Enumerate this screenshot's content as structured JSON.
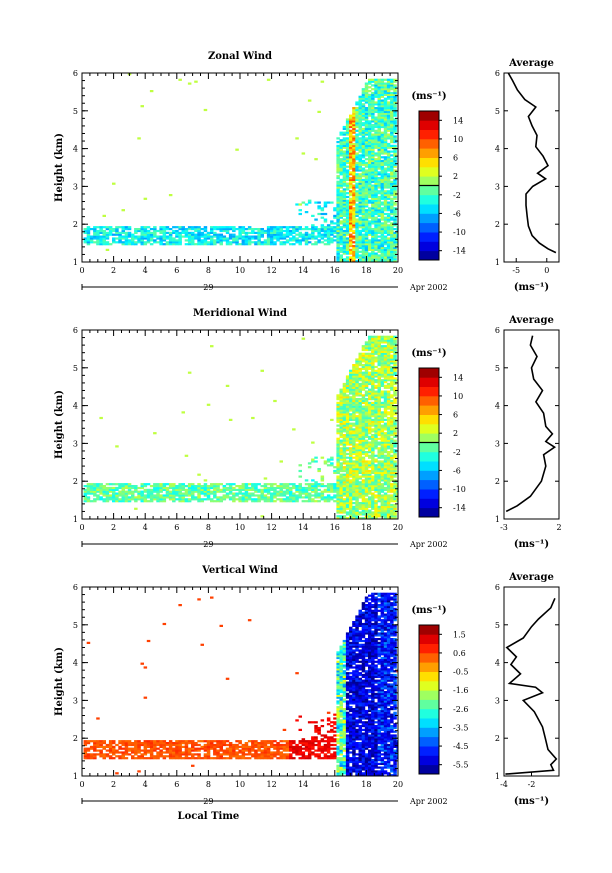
{
  "chart_data": [
    {
      "type": "heatmap",
      "title": "Zonal Wind",
      "ylabel": "Height (km)",
      "xlim": [
        0,
        20
      ],
      "ylim": [
        1,
        6
      ],
      "xticks": [
        "0",
        "2",
        "4",
        "6",
        "8",
        "10",
        "12",
        "14",
        "16",
        "18",
        "20"
      ],
      "yticks": [
        "1",
        "2",
        "3",
        "4",
        "5",
        "6"
      ],
      "date_day": "29",
      "date_month": "Apr 2002",
      "colorbar": {
        "unit": "(ms⁻¹)",
        "ticks": [
          "14",
          "10",
          "6",
          "2",
          "-2",
          "-6",
          "-10",
          "-14"
        ],
        "range": [
          -16,
          16
        ],
        "zero_line": 0
      },
      "average_profile": {
        "title": "Average",
        "xlabel": "(ms⁻¹)",
        "xlim": [
          -7,
          2
        ],
        "xticks": [
          "-5",
          "0"
        ],
        "xtick_values": [
          -5,
          0
        ],
        "points": [
          [
            1.5,
            1.25
          ],
          [
            0.2,
            1.35
          ],
          [
            -1.2,
            1.5
          ],
          [
            -2.4,
            1.7
          ],
          [
            -3,
            1.95
          ],
          [
            -3.2,
            2.2
          ],
          [
            -3.4,
            2.5
          ],
          [
            -3.4,
            2.8
          ],
          [
            -2.3,
            3.0
          ],
          [
            -0.2,
            3.2
          ],
          [
            -1.5,
            3.35
          ],
          [
            0.2,
            3.55
          ],
          [
            -0.6,
            3.8
          ],
          [
            -1.8,
            4.05
          ],
          [
            -1.6,
            4.35
          ],
          [
            -2.4,
            4.6
          ],
          [
            -3,
            4.85
          ],
          [
            -1.8,
            5.1
          ],
          [
            -3.6,
            5.3
          ],
          [
            -4.8,
            5.55
          ],
          [
            -5.6,
            5.8
          ],
          [
            -6.3,
            6.0
          ]
        ]
      },
      "data_coverage": "Echoes mostly between 1.5-2 km height until about 16 LT, then extending up to ~5.8 km from 16-20 LT."
    },
    {
      "type": "heatmap",
      "title": "Meridional Wind",
      "ylabel": "Height (km)",
      "xlim": [
        0,
        20
      ],
      "ylim": [
        1,
        6
      ],
      "xticks": [
        "0",
        "2",
        "4",
        "6",
        "8",
        "10",
        "12",
        "14",
        "16",
        "18",
        "20"
      ],
      "yticks": [
        "1",
        "2",
        "3",
        "4",
        "5",
        "6"
      ],
      "date_day": "29",
      "date_month": "Apr 2002",
      "colorbar": {
        "unit": "(ms⁻¹)",
        "ticks": [
          "14",
          "10",
          "6",
          "2",
          "-2",
          "-6",
          "-10",
          "-14"
        ],
        "range": [
          -16,
          16
        ],
        "zero_line": 0
      },
      "average_profile": {
        "title": "Average",
        "xlabel": "(ms⁻¹)",
        "xlim": [
          -3,
          2
        ],
        "xticks": [
          "-3",
          "2"
        ],
        "xtick_values": [
          -3,
          2
        ],
        "points": [
          [
            -2.8,
            1.2
          ],
          [
            -1.8,
            1.35
          ],
          [
            -0.6,
            1.6
          ],
          [
            0.4,
            2.0
          ],
          [
            0.8,
            2.4
          ],
          [
            0.6,
            2.7
          ],
          [
            1.6,
            2.9
          ],
          [
            0.8,
            3.05
          ],
          [
            1.4,
            3.25
          ],
          [
            0.8,
            3.45
          ],
          [
            0.6,
            3.8
          ],
          [
            -0.1,
            4.1
          ],
          [
            0.5,
            4.4
          ],
          [
            -0.3,
            4.7
          ],
          [
            -0.5,
            5.0
          ],
          [
            0.0,
            5.3
          ],
          [
            -0.6,
            5.6
          ],
          [
            -0.4,
            5.85
          ]
        ]
      },
      "data_coverage": "Echoes mostly between 1.5-2 km until about 16 LT, then extending up to ~5.8 km from 16-20 LT."
    },
    {
      "type": "heatmap",
      "title": "Vertical Wind",
      "ylabel": "Height (km)",
      "xlabel": "Local Time",
      "xlim": [
        0,
        20
      ],
      "ylim": [
        1,
        6
      ],
      "xticks": [
        "0",
        "2",
        "4",
        "6",
        "8",
        "10",
        "12",
        "14",
        "16",
        "18",
        "20"
      ],
      "yticks": [
        "1",
        "2",
        "3",
        "4",
        "5",
        "6"
      ],
      "date_day": "29",
      "date_month": "Apr 2002",
      "colorbar": {
        "unit": "(ms⁻¹)",
        "ticks": [
          "1.5",
          "0.6",
          "-0.5",
          "-1.6",
          "-2.6",
          "-3.5",
          "-4.5",
          "-5.5"
        ],
        "range": [
          -6,
          2
        ],
        "zero_line": null
      },
      "average_profile": {
        "title": "Average",
        "xlabel": "(ms⁻¹)",
        "xlim": [
          -4,
          0
        ],
        "xticks": [
          "-4",
          "-2"
        ],
        "xtick_values": [
          -4,
          -2
        ],
        "points": [
          [
            -3.9,
            1.05
          ],
          [
            -0.4,
            1.15
          ],
          [
            -0.6,
            1.3
          ],
          [
            -0.2,
            1.45
          ],
          [
            -0.8,
            1.7
          ],
          [
            -1.0,
            2.0
          ],
          [
            -1.2,
            2.3
          ],
          [
            -1.8,
            2.7
          ],
          [
            -2.6,
            3.0
          ],
          [
            -1.2,
            3.2
          ],
          [
            -1.7,
            3.35
          ],
          [
            -3.6,
            3.45
          ],
          [
            -2.8,
            3.7
          ],
          [
            -3.5,
            3.95
          ],
          [
            -3.1,
            4.15
          ],
          [
            -3.8,
            4.4
          ],
          [
            -2.6,
            4.65
          ],
          [
            -2.0,
            4.95
          ],
          [
            -1.5,
            5.15
          ],
          [
            -0.6,
            5.45
          ],
          [
            -0.3,
            5.7
          ]
        ]
      },
      "data_coverage": "Weak near-zero velocities between 1.5-2 km until ~16 LT; strong downward (negative) velocities from 16-20 LT up to ~6 km."
    }
  ]
}
